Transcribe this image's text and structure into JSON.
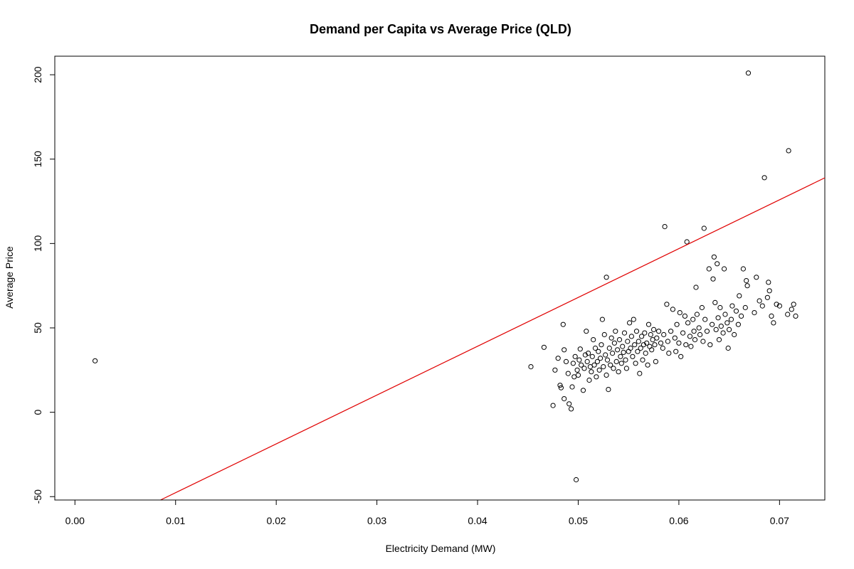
{
  "chart_data": {
    "type": "scatter",
    "title": "Demand per Capita vs Average Price (QLD)",
    "xlabel": "Electricity Demand (MW)",
    "ylabel": "Average Price",
    "xlim": [
      -0.002,
      0.0745
    ],
    "ylim": [
      -52,
      211
    ],
    "x_ticks": [
      0.0,
      0.01,
      0.02,
      0.03,
      0.04,
      0.05,
      0.06,
      0.07
    ],
    "x_tick_labels": [
      "0.00",
      "0.01",
      "0.02",
      "0.03",
      "0.04",
      "0.05",
      "0.06",
      "0.07"
    ],
    "y_ticks": [
      -50,
      0,
      50,
      100,
      150,
      200
    ],
    "y_tick_labels": [
      "-50",
      "0",
      "50",
      "100",
      "150",
      "200"
    ],
    "grid": false,
    "legend": "none",
    "colors": {
      "points": "#000000",
      "fit_line": "#e00000"
    },
    "fit_line": {
      "slope": 2893,
      "intercept": -76.6
    },
    "points": [
      [
        0.002,
        30.5
      ],
      [
        0.0453,
        27.0
      ],
      [
        0.0466,
        38.5
      ],
      [
        0.0475,
        4.0
      ],
      [
        0.0477,
        25.0
      ],
      [
        0.048,
        32.0
      ],
      [
        0.0482,
        16.0
      ],
      [
        0.0483,
        14.5
      ],
      [
        0.0485,
        52.0
      ],
      [
        0.0486,
        37.0
      ],
      [
        0.0486,
        8.0
      ],
      [
        0.0488,
        30.0
      ],
      [
        0.049,
        23.0
      ],
      [
        0.0491,
        5.0
      ],
      [
        0.0493,
        2.0
      ],
      [
        0.0494,
        15.0
      ],
      [
        0.0495,
        29.0
      ],
      [
        0.0496,
        21.0
      ],
      [
        0.0497,
        33.0
      ],
      [
        0.0498,
        -40.0
      ],
      [
        0.0499,
        25.0
      ],
      [
        0.05,
        22.0
      ],
      [
        0.0501,
        31.0
      ],
      [
        0.0502,
        37.5
      ],
      [
        0.0503,
        28.0
      ],
      [
        0.0505,
        13.0
      ],
      [
        0.0506,
        26.0
      ],
      [
        0.0507,
        34.0
      ],
      [
        0.0508,
        48.0
      ],
      [
        0.0509,
        30.0
      ],
      [
        0.051,
        35.0
      ],
      [
        0.0511,
        19.0
      ],
      [
        0.0512,
        27.0
      ],
      [
        0.0513,
        24.0
      ],
      [
        0.0514,
        33.0
      ],
      [
        0.0515,
        43.0
      ],
      [
        0.0516,
        28.0
      ],
      [
        0.0517,
        38.0
      ],
      [
        0.0518,
        21.0
      ],
      [
        0.0519,
        30.0
      ],
      [
        0.052,
        36.0
      ],
      [
        0.0521,
        25.0
      ],
      [
        0.0522,
        32.0
      ],
      [
        0.0523,
        40.0
      ],
      [
        0.0524,
        55.0
      ],
      [
        0.0525,
        27.0
      ],
      [
        0.0526,
        46.0
      ],
      [
        0.0527,
        34.0
      ],
      [
        0.0528,
        80.0
      ],
      [
        0.0528,
        22.0
      ],
      [
        0.0529,
        31.0
      ],
      [
        0.053,
        13.5
      ],
      [
        0.0531,
        38.0
      ],
      [
        0.0532,
        28.0
      ],
      [
        0.0533,
        44.0
      ],
      [
        0.0534,
        35.0
      ],
      [
        0.0535,
        26.0
      ],
      [
        0.0536,
        41.0
      ],
      [
        0.0537,
        48.0
      ],
      [
        0.0538,
        30.0
      ],
      [
        0.0539,
        37.0
      ],
      [
        0.054,
        24.0
      ],
      [
        0.0541,
        43.0
      ],
      [
        0.0542,
        33.0
      ],
      [
        0.0543,
        29.0
      ],
      [
        0.0544,
        39.0
      ],
      [
        0.0545,
        35.5
      ],
      [
        0.0546,
        47.0
      ],
      [
        0.0547,
        31.0
      ],
      [
        0.0548,
        26.0
      ],
      [
        0.0549,
        42.0
      ],
      [
        0.055,
        36.0
      ],
      [
        0.0551,
        53.0
      ],
      [
        0.0552,
        38.0
      ],
      [
        0.0553,
        45.0
      ],
      [
        0.0554,
        33.0
      ],
      [
        0.0555,
        55.0
      ],
      [
        0.0556,
        40.0
      ],
      [
        0.0557,
        29.0
      ],
      [
        0.0558,
        48.0
      ],
      [
        0.0559,
        36.0
      ],
      [
        0.056,
        42.0
      ],
      [
        0.0561,
        23.0
      ],
      [
        0.0562,
        38.0
      ],
      [
        0.0563,
        45.0
      ],
      [
        0.0564,
        31.0
      ],
      [
        0.0565,
        40.0
      ],
      [
        0.0566,
        47.0
      ],
      [
        0.0567,
        35.0
      ],
      [
        0.0568,
        41.0
      ],
      [
        0.0569,
        28.0
      ],
      [
        0.057,
        52.0
      ],
      [
        0.0571,
        39.0
      ],
      [
        0.0572,
        46.0
      ],
      [
        0.0573,
        37.0
      ],
      [
        0.0574,
        43.0
      ],
      [
        0.0575,
        49.0
      ],
      [
        0.0576,
        40.0
      ],
      [
        0.0577,
        30.0
      ],
      [
        0.0578,
        44.0
      ],
      [
        0.058,
        48.0
      ],
      [
        0.0582,
        41.0
      ],
      [
        0.0584,
        38.0
      ],
      [
        0.0585,
        46.0
      ],
      [
        0.0586,
        110.0
      ],
      [
        0.0588,
        64.0
      ],
      [
        0.0589,
        42.0
      ],
      [
        0.059,
        35.0
      ],
      [
        0.0592,
        48.0
      ],
      [
        0.0594,
        61.0
      ],
      [
        0.0596,
        44.0
      ],
      [
        0.0597,
        36.0
      ],
      [
        0.0598,
        52.0
      ],
      [
        0.06,
        41.0
      ],
      [
        0.0601,
        59.0
      ],
      [
        0.0602,
        33.0
      ],
      [
        0.0604,
        47.0
      ],
      [
        0.0606,
        57.0
      ],
      [
        0.0607,
        40.0
      ],
      [
        0.0608,
        101.0
      ],
      [
        0.0609,
        53.0
      ],
      [
        0.0611,
        45.0
      ],
      [
        0.0612,
        39.0
      ],
      [
        0.0614,
        55.0
      ],
      [
        0.0615,
        48.0
      ],
      [
        0.0616,
        43.0
      ],
      [
        0.0617,
        74.0
      ],
      [
        0.0618,
        58.0
      ],
      [
        0.062,
        50.0
      ],
      [
        0.0621,
        46.0
      ],
      [
        0.0623,
        62.0
      ],
      [
        0.0624,
        42.0
      ],
      [
        0.0625,
        109.0
      ],
      [
        0.0626,
        55.0
      ],
      [
        0.0628,
        48.0
      ],
      [
        0.063,
        85.0
      ],
      [
        0.0631,
        40.0
      ],
      [
        0.0633,
        52.0
      ],
      [
        0.0634,
        79.0
      ],
      [
        0.0635,
        92.0
      ],
      [
        0.0636,
        65.0
      ],
      [
        0.0637,
        49.0
      ],
      [
        0.0638,
        88.0
      ],
      [
        0.0639,
        56.0
      ],
      [
        0.064,
        43.0
      ],
      [
        0.0641,
        62.0
      ],
      [
        0.0642,
        51.0
      ],
      [
        0.0644,
        47.0
      ],
      [
        0.0645,
        85.0
      ],
      [
        0.0646,
        58.0
      ],
      [
        0.0648,
        53.0
      ],
      [
        0.0649,
        38.0
      ],
      [
        0.065,
        49.0
      ],
      [
        0.0652,
        55.0
      ],
      [
        0.0653,
        63.0
      ],
      [
        0.0655,
        46.0
      ],
      [
        0.0657,
        60.0
      ],
      [
        0.0659,
        52.0
      ],
      [
        0.066,
        69.0
      ],
      [
        0.0662,
        57.0
      ],
      [
        0.0664,
        85.0
      ],
      [
        0.0666,
        62.0
      ],
      [
        0.0667,
        78.0
      ],
      [
        0.0668,
        75.0
      ],
      [
        0.0669,
        201.0
      ],
      [
        0.0675,
        59.0
      ],
      [
        0.0677,
        80.0
      ],
      [
        0.068,
        66.0
      ],
      [
        0.0683,
        63.0
      ],
      [
        0.0685,
        139.0
      ],
      [
        0.0688,
        68.0
      ],
      [
        0.0689,
        77.0
      ],
      [
        0.069,
        72.0
      ],
      [
        0.0692,
        57.0
      ],
      [
        0.0694,
        53.0
      ],
      [
        0.0697,
        64.0
      ],
      [
        0.07,
        63.0
      ],
      [
        0.0708,
        58.0
      ],
      [
        0.0709,
        155.0
      ],
      [
        0.0712,
        61.0
      ],
      [
        0.0714,
        64.0
      ],
      [
        0.0716,
        57.0
      ]
    ]
  }
}
